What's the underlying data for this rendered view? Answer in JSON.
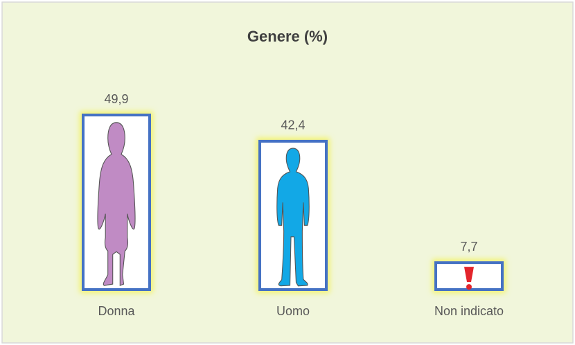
{
  "chart_data": {
    "type": "bar",
    "title": "Genere (%)",
    "categories": [
      "Donna",
      "Uomo",
      "Non indicato"
    ],
    "values": [
      49.9,
      42.4,
      7.7
    ],
    "value_labels": [
      "49,9",
      "42,4",
      "7,7"
    ],
    "color": "#4472c4"
  }
}
